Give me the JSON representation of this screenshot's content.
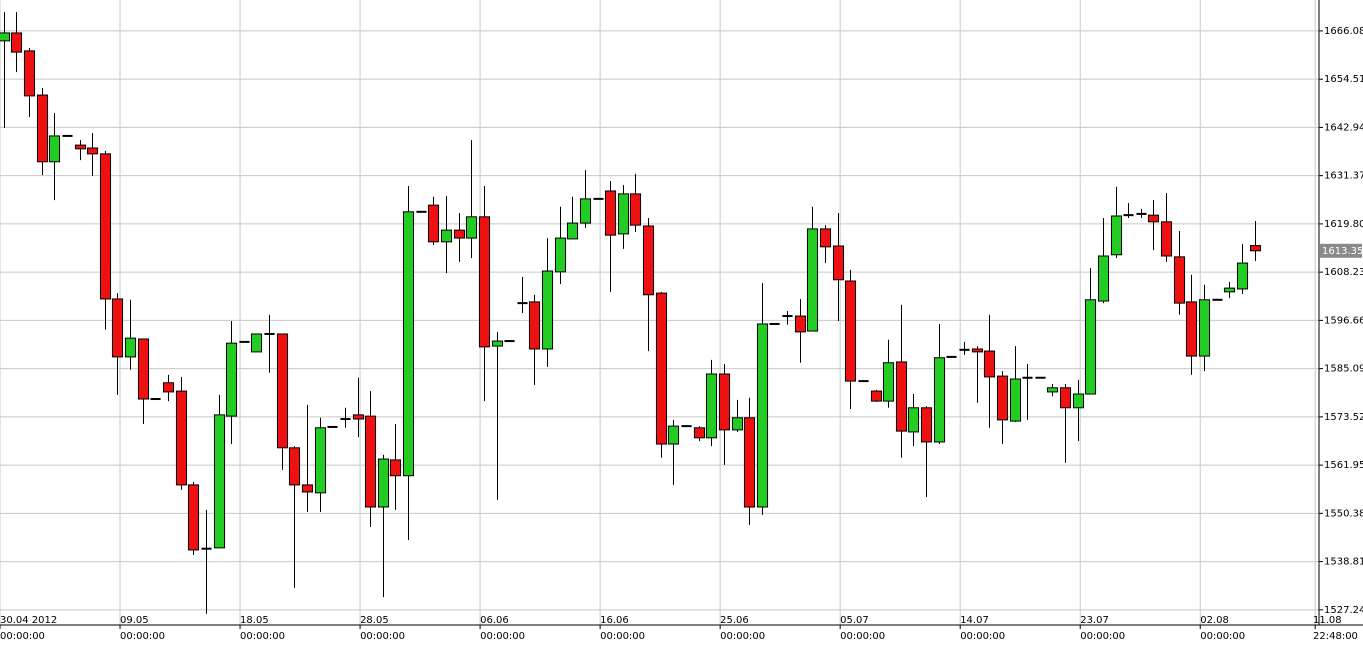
{
  "chart_data": {
    "type": "candlestick",
    "up_color": "#22cc22",
    "down_color": "#ee1111",
    "grid": true,
    "categories": [
      null,
      null,
      null,
      null,
      null,
      null,
      null,
      null,
      null,
      null,
      null,
      null,
      null,
      null,
      null,
      null,
      null,
      null,
      null,
      null,
      null,
      null,
      null,
      null,
      null,
      null,
      null,
      null,
      null,
      null,
      null,
      null,
      null,
      null,
      null,
      null,
      null,
      null,
      null,
      null,
      null,
      null,
      null,
      null,
      null,
      null,
      null,
      null,
      null,
      null,
      null,
      null,
      null,
      null,
      null,
      null,
      null,
      null,
      null,
      null,
      null,
      null,
      null,
      null,
      null,
      null,
      null,
      null,
      null,
      null,
      null,
      null,
      null,
      null,
      null,
      null,
      null,
      null,
      null,
      null,
      null,
      null,
      null,
      null,
      null,
      null,
      null,
      null,
      null,
      null,
      null,
      null,
      null,
      null,
      null,
      null,
      null,
      null,
      null,
      null
    ],
    "xlim": [
      -0.3,
      104.1
    ],
    "xticks": [
      {
        "value": -0.3,
        "label": "30.04 2012\n00:00:00"
      },
      {
        "value": 9.2,
        "label": "09.05\n00:00:00"
      },
      {
        "value": 18.7,
        "label": "18.05\n00:00:00"
      },
      {
        "value": 28.2,
        "label": "28.05\n00:00:00"
      },
      {
        "value": 37.7,
        "label": "06.06\n00:00:00"
      },
      {
        "value": 47.2,
        "label": "16.06\n00:00:00"
      },
      {
        "value": 56.7,
        "label": "25.06\n00:00:00"
      },
      {
        "value": 66.2,
        "label": "05.07\n00:00:00"
      },
      {
        "value": 75.7,
        "label": "14.07\n00:00:00"
      },
      {
        "value": 85.2,
        "label": "23.07\n00:00:00"
      },
      {
        "value": 94.7,
        "label": "02.08\n00:00:00"
      },
      {
        "value": 103.8,
        "label": "11.08\n22:48:00"
      }
    ],
    "ylim": [
      1523.6,
      1673.5
    ],
    "yticks": [
      1527.24,
      1538.81,
      1550.38,
      1561.95,
      1573.52,
      1585.09,
      1596.66,
      1608.23,
      {
        "value": 1619.8,
        "label": "1619.80"
      },
      1631.37,
      1642.94,
      1654.51,
      1666.08
    ],
    "open": [
      1663.7,
      1665.6,
      1661.3,
      1650.7,
      1634.7,
      1640.9,
      1638.7,
      1638.0,
      1636.6,
      1601.8,
      1587.9,
      1592.2,
      1577.8,
      1581.7,
      1579.7,
      1557.2,
      1541.9,
      1542.1,
      1573.7,
      1591.5,
      1589.1,
      1593.4,
      1593.4,
      1566.1,
      1557.2,
      1555.3,
      1571.1,
      1573.0,
      1574.0,
      1573.7,
      1551.9,
      1563.2,
      1559.4,
      1622.7,
      1624.3,
      1615.5,
      1618.3,
      1616.4,
      1621.5,
      1590.5,
      1591.7,
      1600.8,
      1601.1,
      1589.8,
      1608.3,
      1616.2,
      1620.0,
      1625.8,
      1627.7,
      1617.4,
      1627.0,
      1619.3,
      1603.2,
      1567.0,
      1571.3,
      1570.9,
      1568.5,
      1583.8,
      1570.4,
      1573.3,
      1551.9,
      1595.8,
      1597.7,
      1597.7,
      1594.1,
      1618.6,
      1614.5,
      1606.1,
      1582.1,
      1579.7,
      1577.3,
      1586.7,
      1569.9,
      1575.7,
      1567.5,
      1587.9,
      1589.6,
      1589.8,
      1589.3,
      1583.3,
      1572.5,
      1582.9,
      1582.9,
      1579.5,
      1580.5,
      1575.7,
      1579.0,
      1601.3,
      1612.4,
      1621.9,
      1622.2,
      1621.9,
      1620.3,
      1611.9,
      1601.1,
      1588.1,
      1601.6,
      1603.5,
      1604.2,
      1614.6
    ],
    "high": [
      1670.6,
      1670.6,
      1662.0,
      1652.4,
      1646.4,
      1640.9,
      1639.9,
      1641.6,
      1637.3,
      1603.2,
      1601.6,
      1592.2,
      1577.8,
      1583.6,
      1583.1,
      1557.9,
      1551.2,
      1578.8,
      1596.5,
      1591.5,
      1593.4,
      1598.0,
      1593.4,
      1566.5,
      1576.4,
      1573.3,
      1571.1,
      1575.7,
      1582.9,
      1579.7,
      1564.4,
      1571.8,
      1628.9,
      1622.7,
      1626.3,
      1626.5,
      1622.4,
      1639.9,
      1628.9,
      1593.9,
      1591.7,
      1607.1,
      1602.8,
      1616.4,
      1623.9,
      1626.3,
      1632.7,
      1625.8,
      1630.1,
      1629.1,
      1631.8,
      1621.2,
      1603.5,
      1572.8,
      1571.3,
      1571.3,
      1587.2,
      1586.2,
      1577.6,
      1578.1,
      1605.6,
      1595.8,
      1598.9,
      1601.8,
      1623.9,
      1619.5,
      1622.4,
      1608.8,
      1582.1,
      1580.0,
      1592.0,
      1600.4,
      1579.0,
      1576.1,
      1595.8,
      1587.9,
      1591.5,
      1590.5,
      1598.0,
      1584.5,
      1590.5,
      1586.2,
      1582.9,
      1581.4,
      1581.4,
      1582.4,
      1609.2,
      1621.2,
      1628.7,
      1624.8,
      1623.4,
      1625.5,
      1627.2,
      1618.1,
      1607.6,
      1605.2,
      1601.6,
      1605.9,
      1615.0,
      1620.5
    ],
    "low": [
      1642.8,
      1656.2,
      1645.4,
      1631.5,
      1625.5,
      1640.9,
      1635.1,
      1631.3,
      1594.4,
      1578.8,
      1584.8,
      1571.8,
      1577.8,
      1577.3,
      1556.0,
      1540.4,
      1526.3,
      1542.1,
      1567.0,
      1591.5,
      1589.1,
      1584.1,
      1560.8,
      1532.5,
      1550.7,
      1550.7,
      1571.1,
      1570.9,
      1568.7,
      1547.1,
      1530.3,
      1551.2,
      1544.0,
      1622.7,
      1614.7,
      1608.0,
      1610.7,
      1611.6,
      1577.3,
      1553.6,
      1591.7,
      1598.4,
      1581.2,
      1585.5,
      1605.4,
      1616.2,
      1618.8,
      1625.8,
      1603.5,
      1613.8,
      1617.9,
      1589.3,
      1563.7,
      1557.2,
      1571.3,
      1567.7,
      1566.5,
      1562.0,
      1569.9,
      1547.6,
      1550.0,
      1595.8,
      1595.6,
      1586.5,
      1594.1,
      1610.4,
      1596.5,
      1575.4,
      1582.1,
      1577.1,
      1575.7,
      1563.7,
      1566.5,
      1554.3,
      1567.0,
      1587.9,
      1588.4,
      1576.9,
      1570.9,
      1567.0,
      1572.3,
      1572.8,
      1582.9,
      1578.5,
      1562.5,
      1567.7,
      1579.0,
      1600.8,
      1611.6,
      1621.2,
      1621.2,
      1613.5,
      1610.7,
      1598.0,
      1583.6,
      1584.5,
      1601.6,
      1602.0,
      1603.0,
      1610.9
    ],
    "close": [
      1665.6,
      1661.0,
      1650.5,
      1634.7,
      1640.9,
      1640.9,
      1637.8,
      1636.6,
      1601.8,
      1587.9,
      1592.4,
      1577.8,
      1577.8,
      1579.5,
      1557.2,
      1541.6,
      1541.9,
      1574.0,
      1591.2,
      1591.5,
      1593.4,
      1593.4,
      1566.1,
      1557.2,
      1555.5,
      1570.9,
      1571.1,
      1573.0,
      1573.0,
      1551.9,
      1563.4,
      1559.4,
      1622.7,
      1622.7,
      1615.5,
      1618.3,
      1616.4,
      1621.5,
      1590.3,
      1591.7,
      1591.7,
      1600.8,
      1589.8,
      1608.5,
      1616.4,
      1620.0,
      1625.8,
      1625.8,
      1617.1,
      1627.0,
      1619.5,
      1602.8,
      1567.0,
      1571.3,
      1571.3,
      1568.5,
      1583.8,
      1570.4,
      1573.3,
      1551.9,
      1595.8,
      1595.8,
      1597.7,
      1593.9,
      1618.6,
      1614.3,
      1606.4,
      1582.1,
      1582.1,
      1577.3,
      1586.5,
      1570.1,
      1575.7,
      1567.5,
      1587.7,
      1587.9,
      1589.6,
      1589.1,
      1583.1,
      1572.8,
      1582.6,
      1582.9,
      1582.9,
      1580.5,
      1575.7,
      1579.0,
      1601.6,
      1612.1,
      1621.7,
      1621.9,
      1622.2,
      1620.3,
      1612.1,
      1600.8,
      1588.1,
      1601.6,
      1601.6,
      1604.4,
      1610.4,
      1613.35
    ]
  }
}
